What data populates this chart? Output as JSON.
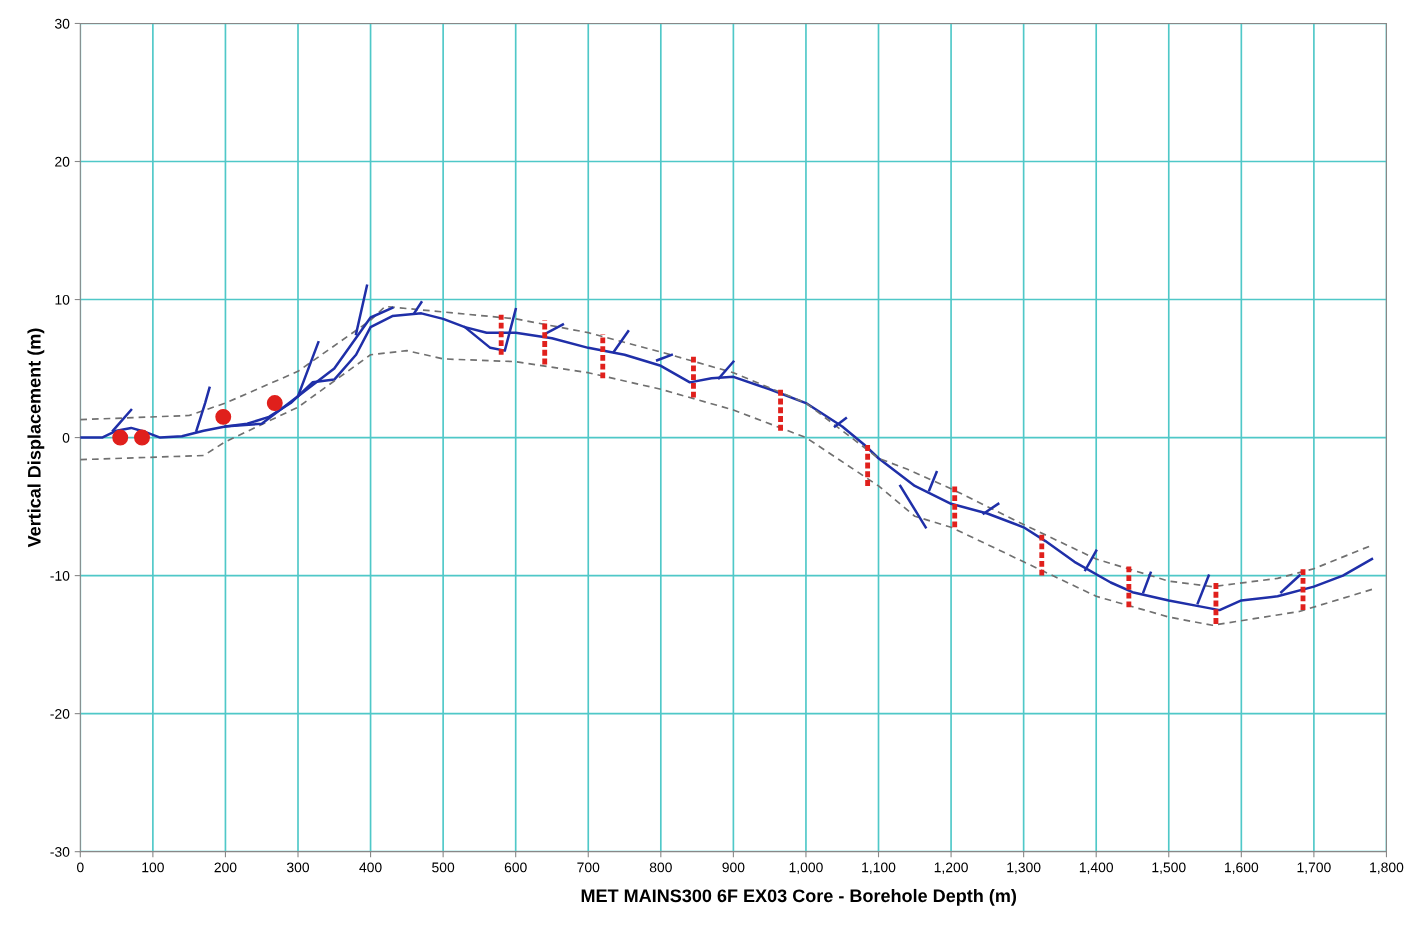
{
  "chart_data": {
    "type": "line",
    "xlabel": "MET MAINS300 6F EX03 Core - Borehole Depth (m)",
    "ylabel": "Vertical Displacement (m)",
    "xlim": [
      0,
      1800
    ],
    "ylim": [
      -30,
      30
    ],
    "xticks": [
      0,
      100,
      200,
      300,
      400,
      500,
      600,
      700,
      800,
      900,
      {
        "value": 1000,
        "label": "1,000"
      },
      {
        "value": 1100,
        "label": "1,100"
      },
      {
        "value": 1200,
        "label": "1,200"
      },
      {
        "value": 1300,
        "label": "1,300"
      },
      {
        "value": 1400,
        "label": "1,400"
      },
      {
        "value": 1500,
        "label": "1,500"
      },
      {
        "value": 1600,
        "label": "1,600"
      },
      {
        "value": 1700,
        "label": "1,700"
      },
      {
        "value": 1800,
        "label": "1,800"
      }
    ],
    "yticks": [
      -30,
      -20,
      -10,
      0,
      10,
      20,
      30
    ],
    "grid": true,
    "series": [
      {
        "color": "#1f2fa8",
        "x": [
          0,
          30,
          50,
          70,
          90,
          110,
          140,
          170,
          200,
          230,
          260,
          290,
          320,
          350,
          380,
          400,
          430,
          470,
          500,
          530,
          560,
          600,
          650,
          700,
          750,
          800,
          840,
          870,
          900,
          950,
          1000,
          1050,
          1080,
          1100,
          1150,
          1200,
          1250,
          1300,
          1330,
          1370,
          1420,
          1450,
          1500,
          1550,
          1570,
          1600,
          1650,
          1700,
          1740,
          1780
        ],
        "values": [
          0,
          0,
          0.5,
          0.7,
          0.4,
          0,
          0.1,
          0.5,
          0.8,
          1.0,
          1.5,
          2.5,
          4.0,
          4.2,
          6.0,
          8.0,
          8.8,
          9.0,
          8.6,
          8.0,
          7.6,
          7.6,
          7.2,
          6.5,
          6.0,
          5.2,
          4.0,
          4.3,
          4.4,
          3.5,
          2.5,
          0.8,
          -0.5,
          -1.5,
          -3.5,
          -4.8,
          -5.5,
          -6.5,
          -7.5,
          -9.0,
          -10.5,
          -11.2,
          -11.8,
          -12.3,
          -12.5,
          -11.8,
          -11.5,
          -10.8,
          -10.0,
          -8.8
        ]
      },
      {
        "color": "#707070",
        "line_style": "dashed",
        "x": [
          0,
          150,
          200,
          300,
          400,
          420,
          500,
          600,
          700,
          800,
          900,
          1000,
          1100,
          1140,
          1200,
          1300,
          1400,
          1500,
          1560,
          1650,
          1700,
          1780
        ],
        "values": [
          1.3,
          1.6,
          2.5,
          4.8,
          8.5,
          9.5,
          9.1,
          8.6,
          7.6,
          6.2,
          4.7,
          2.5,
          -1.5,
          -2.3,
          -3.7,
          -6.3,
          -8.8,
          -10.4,
          -10.8,
          -10.2,
          -9.5,
          -7.8
        ]
      },
      {
        "color": "#707070",
        "line_style": "dashed",
        "x": [
          0,
          170,
          200,
          300,
          400,
          450,
          500,
          600,
          700,
          800,
          900,
          1000,
          1100,
          1150,
          1200,
          1300,
          1400,
          1500,
          1560,
          1680,
          1780
        ],
        "values": [
          -1.6,
          -1.3,
          -0.3,
          2.2,
          6.0,
          6.3,
          5.7,
          5.5,
          4.7,
          3.5,
          2.0,
          0,
          -3.5,
          -5.7,
          -6.5,
          -9.0,
          -11.5,
          -13.0,
          -13.6,
          -12.6,
          -11.0
        ]
      },
      {
        "color": "#1f2fa8",
        "x": [
          200,
          250,
          300,
          350,
          400,
          430
        ],
        "values": [
          0.8,
          1.0,
          3.0,
          5.0,
          8.7,
          9.4
        ]
      },
      {
        "color": "#1f2fa8",
        "x": [
          45,
          70
        ],
        "values": [
          0.5,
          2.0
        ]
      },
      {
        "color": "#1f2fa8",
        "x": [
          160,
          172,
          178
        ],
        "values": [
          0.5,
          2.5,
          3.6
        ]
      },
      {
        "color": "#1f2fa8",
        "x": [
          300,
          328
        ],
        "values": [
          3.0,
          6.9
        ]
      },
      {
        "color": "#1f2fa8",
        "x": [
          380,
          395
        ],
        "values": [
          7.5,
          11.0
        ]
      },
      {
        "color": "#1f2fa8",
        "x": [
          460,
          470
        ],
        "values": [
          9.0,
          9.8
        ]
      },
      {
        "color": "#1f2fa8",
        "x": [
          530,
          565,
          585,
          600
        ],
        "values": [
          8.0,
          6.5,
          6.3,
          9.3
        ]
      },
      {
        "color": "#1f2fa8",
        "x": [
          640,
          665
        ],
        "values": [
          7.5,
          8.2
        ]
      },
      {
        "color": "#1f2fa8",
        "x": [
          735,
          755
        ],
        "values": [
          6.2,
          7.7
        ]
      },
      {
        "color": "#1f2fa8",
        "x": [
          795,
          815
        ],
        "values": [
          5.6,
          6.0
        ]
      },
      {
        "color": "#1f2fa8",
        "x": [
          880,
          900
        ],
        "values": [
          4.3,
          5.5
        ]
      },
      {
        "color": "#1f2fa8",
        "x": [
          1040,
          1055
        ],
        "values": [
          0.8,
          1.4
        ]
      },
      {
        "color": "#1f2fa8",
        "x": [
          1130,
          1165
        ],
        "values": [
          -3.5,
          -6.5
        ]
      },
      {
        "color": "#1f2fa8",
        "x": [
          1170,
          1180
        ],
        "values": [
          -3.8,
          -2.5
        ]
      },
      {
        "color": "#1f2fa8",
        "x": [
          1245,
          1265
        ],
        "values": [
          -5.5,
          -4.8
        ]
      },
      {
        "color": "#1f2fa8",
        "x": [
          1385,
          1400
        ],
        "values": [
          -9.6,
          -8.2
        ]
      },
      {
        "color": "#1f2fa8",
        "x": [
          1465,
          1475
        ],
        "values": [
          -11.2,
          -9.8
        ]
      },
      {
        "color": "#1f2fa8",
        "x": [
          1540,
          1555
        ],
        "values": [
          -12.0,
          -10.0
        ]
      },
      {
        "color": "#1f2fa8",
        "x": [
          1655,
          1680
        ],
        "values": [
          -11.2,
          -10.0
        ]
      },
      {
        "type": "scatter",
        "color": "#e0201c",
        "marker": "circle",
        "x": [
          55,
          85,
          197,
          268
        ],
        "values": [
          0,
          0,
          1.5,
          2.5
        ]
      },
      {
        "color": "#e0201c",
        "line_style": "dashed",
        "x": [
          580,
          580
        ],
        "values": [
          6.0,
          8.9
        ]
      },
      {
        "color": "#e0201c",
        "line_style": "dashed",
        "x": [
          640,
          640
        ],
        "values": [
          5.3,
          8.5
        ]
      },
      {
        "color": "#e0201c",
        "line_style": "dashed",
        "x": [
          720,
          720
        ],
        "values": [
          4.3,
          7.5
        ]
      },
      {
        "color": "#e0201c",
        "line_style": "dashed",
        "x": [
          845,
          845
        ],
        "values": [
          2.9,
          6.0
        ]
      },
      {
        "color": "#e0201c",
        "line_style": "dashed",
        "x": [
          965,
          965
        ],
        "values": [
          0.5,
          3.5
        ]
      },
      {
        "color": "#e0201c",
        "line_style": "dashed",
        "x": [
          1085,
          1085
        ],
        "values": [
          -3.5,
          -0.5
        ]
      },
      {
        "color": "#e0201c",
        "line_style": "dashed",
        "x": [
          1205,
          1205
        ],
        "values": [
          -6.5,
          -3.5
        ]
      },
      {
        "color": "#e0201c",
        "line_style": "dashed",
        "x": [
          1325,
          1325
        ],
        "values": [
          -10.0,
          -7.0
        ]
      },
      {
        "color": "#e0201c",
        "line_style": "dashed",
        "x": [
          1445,
          1445
        ],
        "values": [
          -12.3,
          -9.3
        ]
      },
      {
        "color": "#e0201c",
        "line_style": "dashed",
        "x": [
          1565,
          1565
        ],
        "values": [
          -13.5,
          -10.5
        ]
      },
      {
        "color": "#e0201c",
        "line_style": "dashed",
        "x": [
          1685,
          1685
        ],
        "values": [
          -12.5,
          -9.5
        ]
      }
    ]
  }
}
